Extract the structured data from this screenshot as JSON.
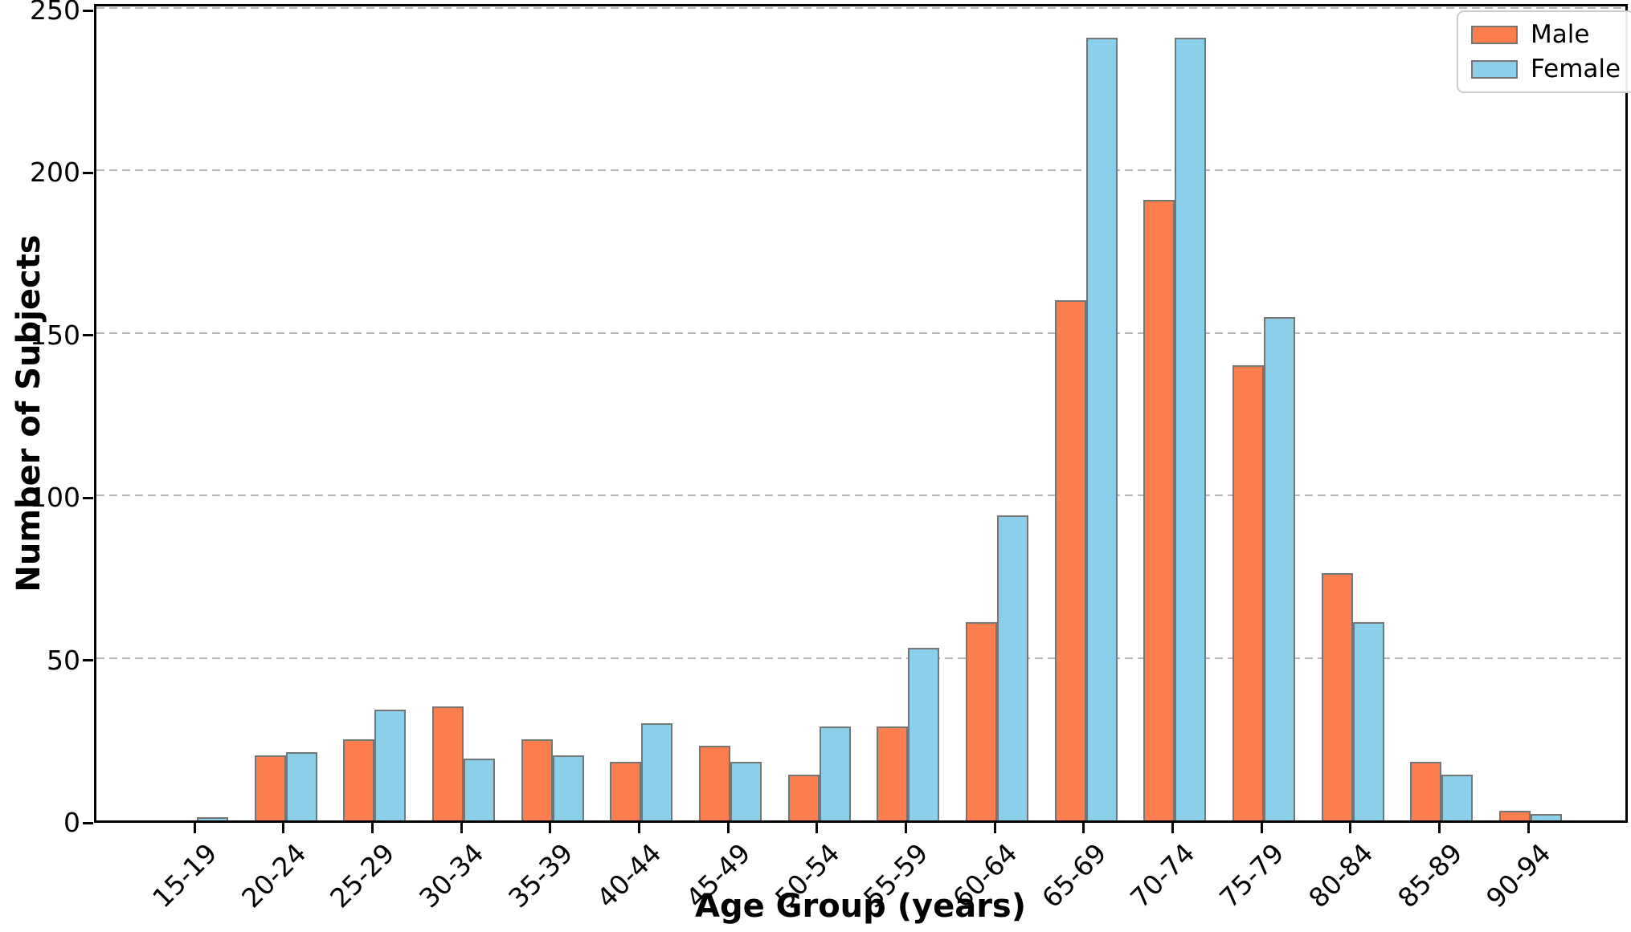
{
  "chart_data": {
    "type": "bar",
    "title": "",
    "xlabel": "Age Group (years)",
    "ylabel": "Number of Subjects",
    "categories": [
      "15-19",
      "20-24",
      "25-29",
      "30-34",
      "35-39",
      "40-44",
      "45-49",
      "50-54",
      "55-59",
      "60-64",
      "65-69",
      "70-74",
      "75-79",
      "80-84",
      "85-89",
      "90-94"
    ],
    "series": [
      {
        "name": "Male",
        "color": "#fc7e4f",
        "values": [
          0,
          20,
          25,
          35,
          25,
          18,
          23,
          14,
          29,
          61,
          160,
          191,
          140,
          76,
          18,
          3
        ]
      },
      {
        "name": "Female",
        "color": "#8ccfea",
        "values": [
          1,
          21,
          34,
          19,
          20,
          30,
          18,
          29,
          53,
          94,
          241,
          241,
          155,
          61,
          14,
          2
        ]
      }
    ],
    "ylim": [
      0,
      252
    ],
    "yticks": [
      0,
      50,
      100,
      150,
      200,
      250
    ],
    "grid": "horizontal-dashed",
    "gridline_color": "#b8b8b8",
    "bar_edge_color": "#757575",
    "axis_color": "#000000",
    "legend_position": "top-right"
  },
  "legend": {
    "items": [
      {
        "label": "Male",
        "color": "#fc7e4f"
      },
      {
        "label": "Female",
        "color": "#8ccfea"
      }
    ]
  }
}
